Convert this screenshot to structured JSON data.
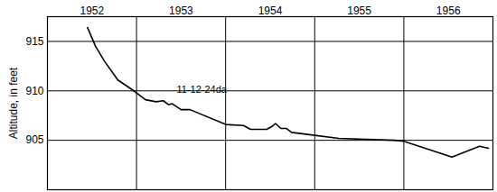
{
  "chart_data": {
    "type": "line",
    "y_label": "Altitude, in feet",
    "x": [
      1952.45,
      1952.54,
      1952.64,
      1952.79,
      1952.97,
      1953.1,
      1953.22,
      1953.3,
      1953.36,
      1953.4,
      1953.5,
      1953.6,
      1954.0,
      1954.2,
      1954.28,
      1954.46,
      1954.52,
      1954.56,
      1954.62,
      1954.68,
      1954.74,
      1955.0,
      1955.27,
      1955.9,
      1956.0,
      1956.54,
      1956.85,
      1956.95
    ],
    "values": [
      916.4,
      914.5,
      913.0,
      911.1,
      910.0,
      909.1,
      908.9,
      909.0,
      908.6,
      908.7,
      908.1,
      908.1,
      906.6,
      906.5,
      906.1,
      906.1,
      906.4,
      906.7,
      906.2,
      906.2,
      905.8,
      905.5,
      905.2,
      905.0,
      904.9,
      903.3,
      904.4,
      904.2
    ],
    "color": "#000000",
    "xlim": [
      1952,
      1957
    ],
    "xticks": [
      {
        "value": 1952.5,
        "label": "1952"
      },
      {
        "value": 1953.5,
        "label": "1953"
      },
      {
        "value": 1954.5,
        "label": "1954"
      },
      {
        "value": 1955.5,
        "label": "1955"
      },
      {
        "value": 1956.5,
        "label": "1956"
      }
    ],
    "ylim": [
      900,
      917.5
    ],
    "yticks": [
      905,
      910,
      915
    ],
    "grid": true,
    "annotations": [
      {
        "text": "11-12-24da",
        "x": 1953.45,
        "y": 910.1
      }
    ]
  }
}
